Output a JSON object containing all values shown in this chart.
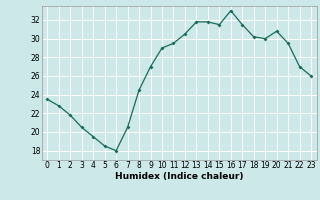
{
  "x": [
    0,
    1,
    2,
    3,
    4,
    5,
    6,
    7,
    8,
    9,
    10,
    11,
    12,
    13,
    14,
    15,
    16,
    17,
    18,
    19,
    20,
    21,
    22,
    23
  ],
  "y": [
    23.5,
    22.8,
    21.8,
    20.5,
    19.5,
    18.5,
    18.0,
    20.5,
    24.5,
    27.0,
    29.0,
    29.5,
    30.5,
    31.8,
    31.8,
    31.5,
    33.0,
    31.5,
    30.2,
    30.0,
    30.8,
    29.5,
    27.0,
    26.0
  ],
  "line_color": "#1a6b5a",
  "marker": "D",
  "marker_size": 2.0,
  "bg_color": "#cce8e8",
  "grid_color": "#ffffff",
  "xlabel": "Humidex (Indice chaleur)",
  "xlim": [
    -0.5,
    23.5
  ],
  "ylim": [
    17.0,
    33.5
  ],
  "yticks": [
    18,
    20,
    22,
    24,
    26,
    28,
    30,
    32
  ],
  "xticks": [
    0,
    1,
    2,
    3,
    4,
    5,
    6,
    7,
    8,
    9,
    10,
    11,
    12,
    13,
    14,
    15,
    16,
    17,
    18,
    19,
    20,
    21,
    22,
    23
  ],
  "tick_fontsize": 5.5,
  "xlabel_fontsize": 6.5
}
